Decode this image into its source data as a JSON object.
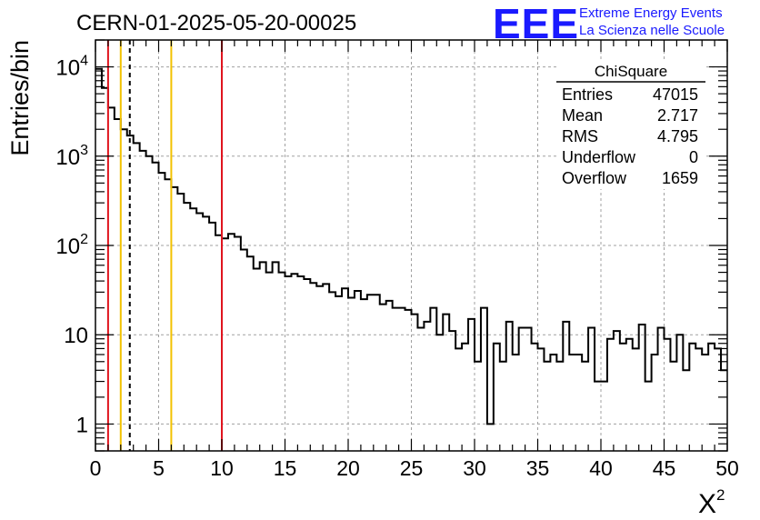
{
  "header": {
    "run_title": "CERN-01-2025-05-20-00025",
    "logo_text": "EEE",
    "project_line1": "Extreme Energy Events",
    "project_line2": "La Scienza nelle Scuole"
  },
  "colors": {
    "histogram": "#000000",
    "red_line": "#e0141e",
    "yellow_line": "#f2c200",
    "grid": "#a0a0a0",
    "logo": "#1a1aff"
  },
  "stats_box": {
    "title": "ChiSquare",
    "rows": [
      {
        "label": "Entries",
        "value": "47015"
      },
      {
        "label": "Mean",
        "value": "2.717"
      },
      {
        "label": "RMS",
        "value": "4.795"
      },
      {
        "label": "Underflow",
        "value": "0"
      },
      {
        "label": "Overflow",
        "value": "1659"
      }
    ]
  },
  "chart_data": {
    "type": "histogram",
    "title": "CERN-01-2025-05-20-00025",
    "xlabel": "X",
    "xlabel_superscript": "2",
    "ylabel": "Entries/bin",
    "x_scale": "linear",
    "y_scale": "log",
    "xlim": [
      0,
      50
    ],
    "ylim": [
      0.5,
      20000
    ],
    "grid": true,
    "bin_width": 0.5,
    "x_ticks": [
      {
        "value": 0,
        "label": "0"
      },
      {
        "value": 5,
        "label": "5"
      },
      {
        "value": 10,
        "label": "10"
      },
      {
        "value": 15,
        "label": "15"
      },
      {
        "value": 20,
        "label": "20"
      },
      {
        "value": 25,
        "label": "25"
      },
      {
        "value": 30,
        "label": "30"
      },
      {
        "value": 35,
        "label": "35"
      },
      {
        "value": 40,
        "label": "40"
      },
      {
        "value": 45,
        "label": "45"
      },
      {
        "value": 50,
        "label": "50"
      }
    ],
    "y_ticks": [
      {
        "value": 1,
        "base": "1",
        "exp": ""
      },
      {
        "value": 10,
        "base": "10",
        "exp": ""
      },
      {
        "value": 100,
        "base": "10",
        "exp": "2"
      },
      {
        "value": 1000,
        "base": "10",
        "exp": "3"
      },
      {
        "value": 10000,
        "base": "10",
        "exp": "4"
      }
    ],
    "bin_contents": [
      9500,
      5800,
      3500,
      2600,
      2000,
      1700,
      1400,
      1150,
      1000,
      850,
      650,
      550,
      450,
      380,
      300,
      260,
      230,
      210,
      180,
      130,
      120,
      135,
      125,
      90,
      75,
      55,
      65,
      50,
      65,
      50,
      45,
      48,
      45,
      42,
      38,
      35,
      37,
      30,
      27,
      33,
      26,
      31,
      25,
      28,
      28,
      22,
      24,
      20,
      20,
      19,
      17,
      12,
      14,
      20,
      10,
      17,
      11,
      7,
      8,
      15,
      5,
      20,
      1,
      8,
      5,
      14,
      6,
      12,
      12,
      8,
      7,
      5,
      6,
      5,
      14,
      6,
      6,
      5,
      12,
      3,
      3,
      9,
      11,
      8,
      9,
      7,
      13,
      3,
      6,
      12,
      9,
      5,
      10,
      4,
      8,
      7,
      6,
      8,
      7,
      4
    ],
    "vertical_lines": [
      {
        "x": 1,
        "color": "red",
        "style": "solid"
      },
      {
        "x": 2,
        "color": "yellow",
        "style": "solid"
      },
      {
        "x": 2.717,
        "color": "black",
        "style": "dashed"
      },
      {
        "x": 6,
        "color": "yellow",
        "style": "solid"
      },
      {
        "x": 10,
        "color": "red",
        "style": "solid"
      }
    ]
  }
}
